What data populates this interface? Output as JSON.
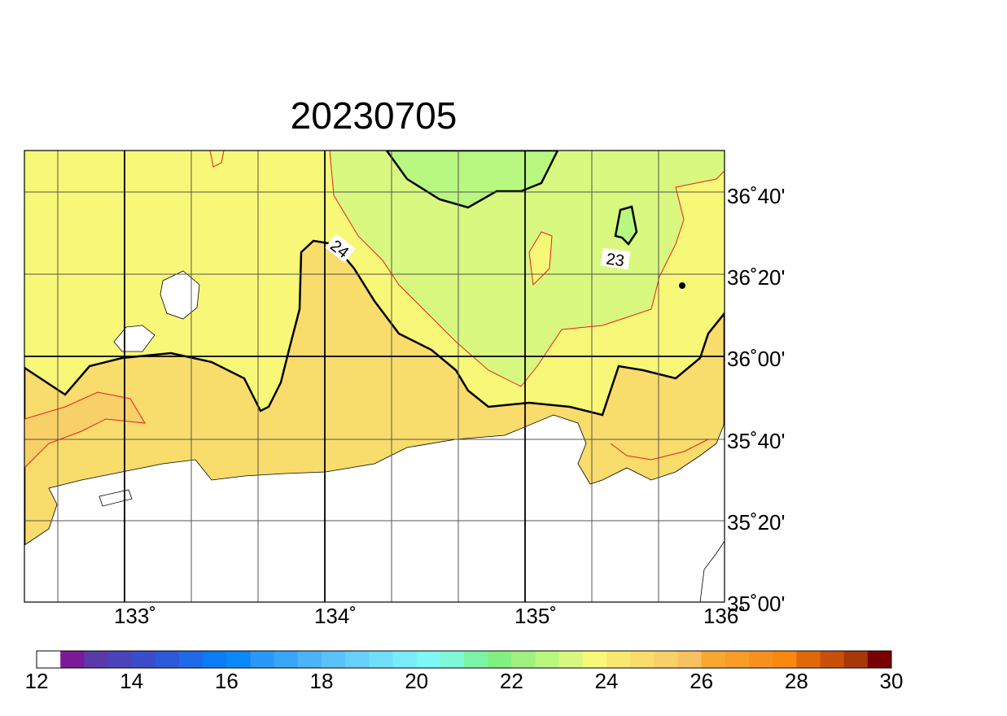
{
  "title": "20230705",
  "map": {
    "lon_labels": [
      "133˚",
      "134˚",
      "135˚",
      "136˚"
    ],
    "lat_labels": [
      "36˚40'",
      "36˚20'",
      "36˚00'",
      "35˚40'",
      "35˚20'",
      "35˚00'"
    ],
    "contour_labels": [
      "24",
      "23"
    ]
  },
  "colorbar": {
    "ticks": [
      12,
      14,
      16,
      18,
      20,
      22,
      24,
      26,
      28,
      30
    ],
    "colors": [
      "#ffffff",
      "#7a1a96",
      "#5a3aa8",
      "#4a44b8",
      "#3d4cc8",
      "#2d5ad8",
      "#1e6ae8",
      "#0a7cf5",
      "#0a88f8",
      "#2a98f8",
      "#3aa6f8",
      "#4ab4f8",
      "#5ac2f8",
      "#66d0f8",
      "#70def8",
      "#78ecf8",
      "#7ef8f4",
      "#80f8d8",
      "#7cf4a8",
      "#80f080",
      "#a0f080",
      "#b8f880",
      "#d8f880",
      "#f8f878",
      "#f8e870",
      "#f8dc6c",
      "#f8d068",
      "#f8c060",
      "#f8a830",
      "#f89c28",
      "#f89020",
      "#f88810",
      "#e06808",
      "#c85008",
      "#a83808",
      "#780000"
    ]
  }
}
